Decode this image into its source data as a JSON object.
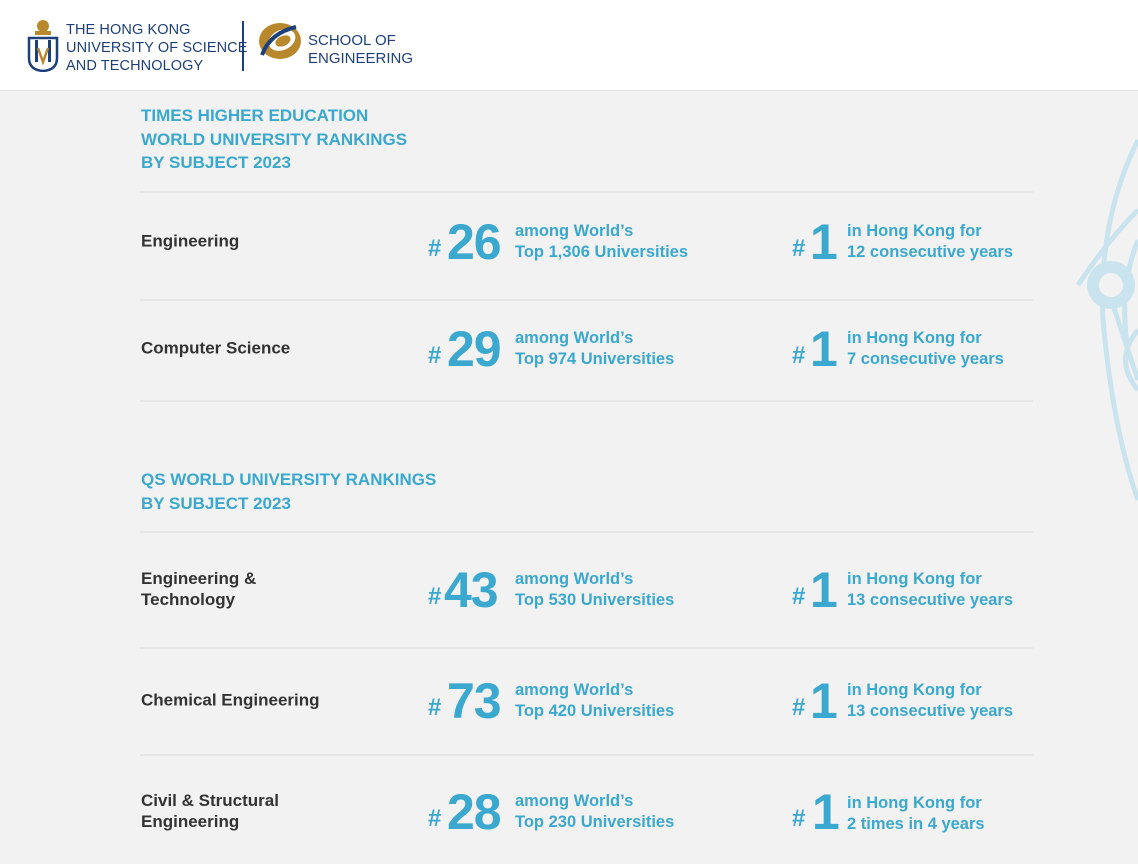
{
  "header": {
    "university_lines": [
      "THE HONG KONG",
      "UNIVERSITY OF SCIENCE",
      "AND TECHNOLOGY"
    ],
    "school_lines": [
      "SCHOOL OF",
      "ENGINEERING"
    ]
  },
  "colors": {
    "accent": "#3aa8cf",
    "brand_navy": "#1d3f7a",
    "brand_gold": "#b8892c",
    "subject_text": "#333333"
  },
  "sections": [
    {
      "title_lines": [
        "TIMES HIGHER EDUCATION",
        "WORLD UNIVERSITY RANKINGS",
        "BY SUBJECT 2023"
      ],
      "rows": [
        {
          "subject_lines": [
            "Engineering"
          ],
          "hash": "#",
          "world_rank": "26",
          "world_note_lines": [
            "among World’s",
            "Top 1,306 Universities"
          ],
          "hk_rank": "1",
          "hk_note_lines": [
            "in Hong Kong for",
            "12 consecutive years"
          ]
        },
        {
          "subject_lines": [
            "Computer Science"
          ],
          "hash": "#",
          "world_rank": "29",
          "world_note_lines": [
            "among World’s",
            "Top 974 Universities"
          ],
          "hk_rank": "1",
          "hk_note_lines": [
            "in Hong Kong for",
            "7 consecutive years"
          ]
        }
      ]
    },
    {
      "title_lines": [
        "QS WORLD UNIVERSITY RANKINGS",
        "BY SUBJECT 2023"
      ],
      "rows": [
        {
          "subject_lines": [
            "Engineering &",
            "Technology"
          ],
          "hash": "#",
          "world_rank": "43",
          "world_note_lines": [
            "among World’s",
            "Top 530 Universities"
          ],
          "hk_rank": "1",
          "hk_note_lines": [
            "in Hong Kong for",
            "13 consecutive years"
          ]
        },
        {
          "subject_lines": [
            "Chemical Engineering"
          ],
          "hash": "#",
          "world_rank": "73",
          "world_note_lines": [
            "among World’s",
            "Top 420 Universities"
          ],
          "hk_rank": "1",
          "hk_note_lines": [
            "in Hong Kong for",
            "13 consecutive years"
          ]
        },
        {
          "subject_lines": [
            "Civil & Structural",
            "Engineering"
          ],
          "hash": "#",
          "world_rank": "28",
          "world_note_lines": [
            "among World’s",
            "Top 230 Universities"
          ],
          "hk_rank": "1",
          "hk_note_lines": [
            "in Hong Kong for",
            "2 times in 4 years"
          ]
        }
      ]
    }
  ]
}
